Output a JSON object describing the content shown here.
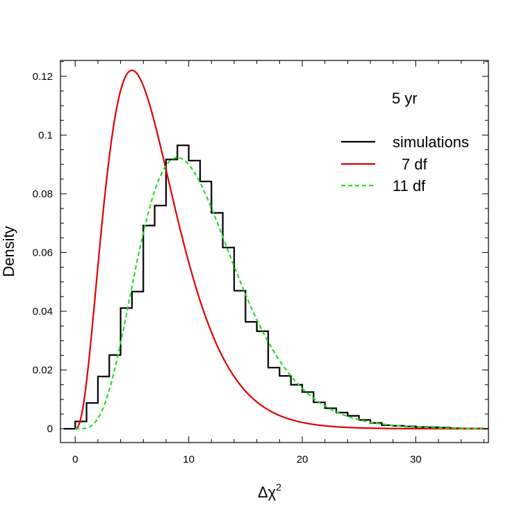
{
  "chart_data": {
    "type": "line",
    "title": "",
    "annotation": "5 yr",
    "xlabel": "Δχ",
    "xlabel_sup": "2",
    "ylabel": "Density",
    "xlim": [
      -1.3,
      36.4
    ],
    "ylim": [
      -0.0047,
      0.1254
    ],
    "xticks": [
      0,
      10,
      20,
      30
    ],
    "xtick_labels": [
      "0",
      "10",
      "20",
      "30"
    ],
    "yticks": [
      0,
      0.02,
      0.04,
      0.06,
      0.08,
      0.1,
      0.12
    ],
    "ytick_labels": [
      "0",
      "0.02",
      "0.04",
      "0.06",
      "0.08",
      "0.1",
      "0.12"
    ],
    "x_minor_step": 2,
    "y_minor_step": 0.005,
    "grid": false,
    "legend_position": "top-right",
    "legend": [
      {
        "label": "simulations",
        "style": "solid",
        "color": "#000000"
      },
      {
        "label": "7 df",
        "style": "solid",
        "color": "#dd0000"
      },
      {
        "label": "11 df",
        "style": "dashed",
        "color": "#22dd22"
      }
    ],
    "histogram": {
      "name": "simulations",
      "color": "#000000",
      "bin_width": 1,
      "bin_starts": [
        -1,
        0,
        1,
        2,
        3,
        4,
        5,
        6,
        7,
        8,
        9,
        10,
        11,
        12,
        13,
        14,
        15,
        16,
        17,
        18,
        19,
        20,
        21,
        22,
        23,
        24,
        25,
        26,
        27,
        28,
        29,
        30,
        31,
        32,
        33,
        34,
        35
      ],
      "values": [
        0.0,
        0.0025,
        0.0088,
        0.0178,
        0.0251,
        0.0411,
        0.0467,
        0.0692,
        0.076,
        0.0917,
        0.0965,
        0.0913,
        0.0842,
        0.0735,
        0.0617,
        0.047,
        0.0364,
        0.0332,
        0.0208,
        0.018,
        0.015,
        0.0125,
        0.009,
        0.007,
        0.0055,
        0.0044,
        0.003,
        0.002,
        0.0012,
        0.001,
        0.0008,
        0.0006,
        0.0005,
        0.0004,
        0.0002,
        0.0001,
        0.0001
      ]
    },
    "series": [
      {
        "name": "7 df",
        "color": "#dd0000",
        "dash": "none",
        "df": 7
      },
      {
        "name": "11 df",
        "color": "#22dd22",
        "dash": "dashed",
        "df": 11
      }
    ]
  }
}
